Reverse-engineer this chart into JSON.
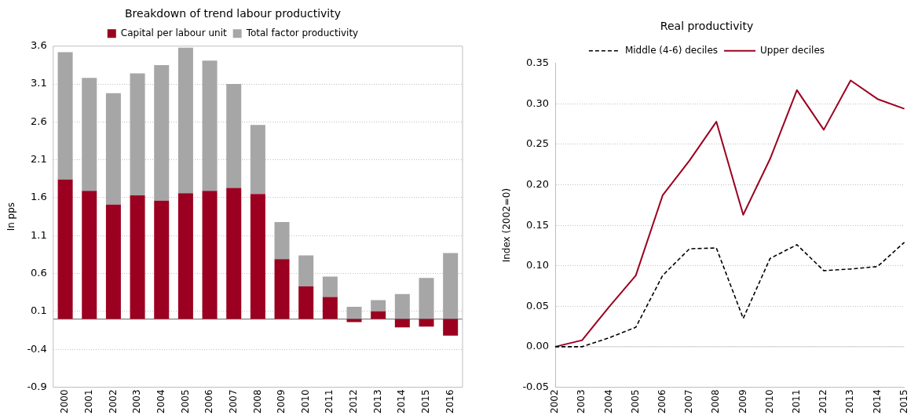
{
  "chart_data": [
    {
      "type": "bar",
      "title": "Breakdown of trend labour productivity",
      "ylabel": "In pps",
      "stacked": true,
      "categories": [
        "2000",
        "2001",
        "2002",
        "2003",
        "2004",
        "2005",
        "2006",
        "2007",
        "2008",
        "2009",
        "2010",
        "2011",
        "2012",
        "2013",
        "2014",
        "2015",
        "2016"
      ],
      "series": [
        {
          "name": "Capital per labour unit",
          "color": "#9b0020",
          "values": [
            1.84,
            1.69,
            1.51,
            1.63,
            1.56,
            1.66,
            1.69,
            1.73,
            1.65,
            0.79,
            0.43,
            0.29,
            -0.04,
            0.1,
            -0.11,
            -0.1,
            -0.22
          ]
        },
        {
          "name": "Total factor productivity",
          "color": "#a6a6a6",
          "values": [
            1.68,
            1.49,
            1.47,
            1.61,
            1.79,
            1.92,
            1.72,
            1.37,
            0.91,
            0.49,
            0.41,
            0.27,
            0.16,
            0.15,
            0.33,
            0.54,
            0.87
          ]
        }
      ],
      "ylim": [
        -0.9,
        3.6
      ],
      "yticks": [
        -0.9,
        -0.4,
        0.1,
        0.6,
        1.1,
        1.6,
        2.1,
        2.6,
        3.1,
        3.6
      ],
      "ref_lines": [
        {
          "axis": "y",
          "value": 0,
          "color": "#808080"
        }
      ],
      "grid": "y",
      "legend": "top"
    },
    {
      "type": "line",
      "title": "Real productivity",
      "ylabel": "Index (2002=0)",
      "categories": [
        "2002",
        "2003",
        "2004",
        "2005",
        "2006",
        "2007",
        "2008",
        "2009",
        "2010",
        "2011",
        "2012",
        "2013",
        "2014",
        "2015"
      ],
      "series": [
        {
          "name": "Middle (4-6) deciles",
          "color": "#000000",
          "line_style": "dashed",
          "values": [
            0,
            0,
            0.011,
            0.024,
            0.088,
            0.121,
            0.122,
            0.035,
            0.109,
            0.126,
            0.094,
            0.096,
            0.099,
            0.129
          ]
        },
        {
          "name": "Upper deciles",
          "color": "#9b0020",
          "line_style": "solid",
          "values": [
            0,
            0.008,
            0.049,
            0.088,
            0.187,
            0.23,
            0.278,
            0.163,
            0.232,
            0.317,
            0.268,
            0.329,
            0.306,
            0.294
          ]
        }
      ],
      "ylim": [
        -0.05,
        0.35
      ],
      "yticks": [
        -0.05,
        {
          "value": 0,
          "label": "0.00"
        },
        0.05,
        {
          "value": 0.1,
          "label": "0.10"
        },
        0.15,
        {
          "value": 0.2,
          "label": "0.20"
        },
        0.25,
        {
          "value": 0.3,
          "label": "0.30"
        },
        0.35
      ],
      "ref_lines": [
        {
          "axis": "y",
          "value": 0,
          "color": "#d9d9d9"
        }
      ],
      "grid": "y",
      "legend": "top",
      "marker": "none"
    }
  ]
}
